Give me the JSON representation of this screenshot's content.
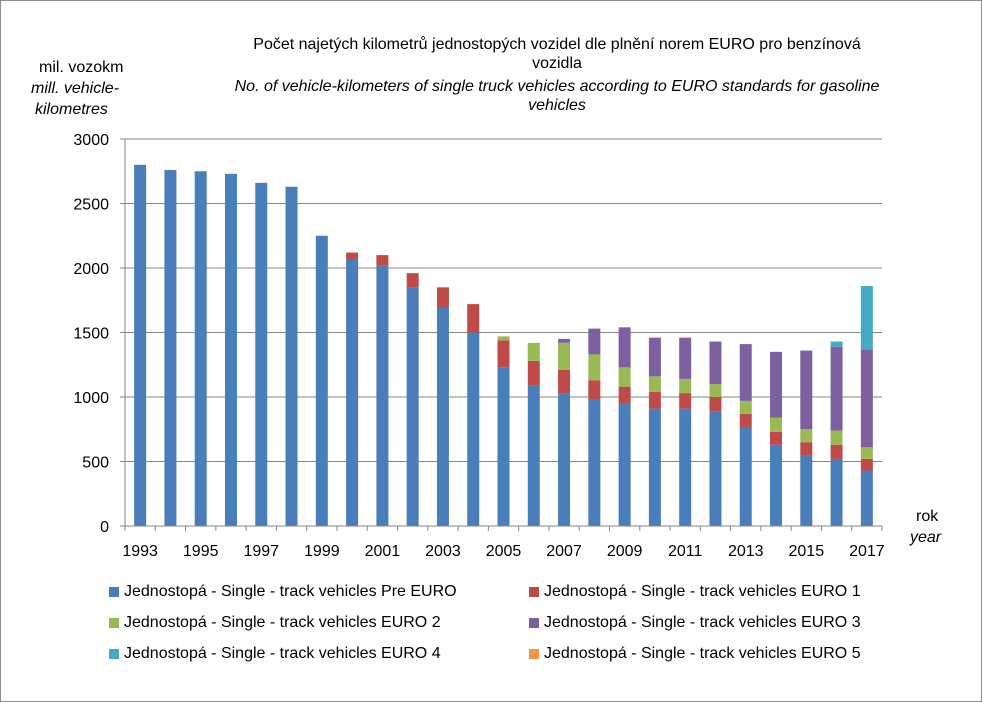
{
  "chart_data": {
    "type": "bar",
    "stacked": true,
    "title_cz": "Počet najetých kilometrů jednostopých vozidel dle plnění norem EURO pro benzínová vozidla",
    "title_cz_line1": "Počet najetých kilometrů jednostopých vozidel dle plnění norem EURO pro benzínová",
    "title_cz_line2": "vozidla",
    "title_en_line1": "No. of vehicle-kilometers of  single truck vehicles according to EURO standards for gasoline",
    "title_en_line2": "vehicles",
    "ylabel_cz": "mil. vozokm",
    "ylabel_en_line1": "mill. vehicle-",
    "ylabel_en_line2": "kilometres",
    "xlabel_cz": "rok",
    "xlabel_en": "year",
    "ylim": [
      0,
      3000
    ],
    "yticks": [
      0,
      500,
      1000,
      1500,
      2000,
      2500,
      3000
    ],
    "categories": [
      "1993",
      "1994",
      "1995",
      "1996",
      "1997",
      "1998",
      "1999",
      "2000",
      "2001",
      "2002",
      "2003",
      "2004",
      "2005",
      "2006",
      "2007",
      "2008",
      "2009",
      "2010",
      "2011",
      "2012",
      "2013",
      "2014",
      "2015",
      "2016",
      "2017"
    ],
    "xtick_labels": [
      "1993",
      "1995",
      "1997",
      "1999",
      "2001",
      "2003",
      "2005",
      "2007",
      "2009",
      "2011",
      "2013",
      "2015",
      "2017"
    ],
    "series": [
      {
        "name": "Jednostopá - Single - track vehicles Pre EURO",
        "color": "#4a7ebb",
        "values": [
          2800,
          2760,
          2750,
          2730,
          2660,
          2630,
          2250,
          2070,
          2020,
          1850,
          1690,
          1500,
          1230,
          1090,
          1030,
          980,
          950,
          910,
          910,
          890,
          760,
          630,
          550,
          520,
          430
        ]
      },
      {
        "name": "Jednostopá - Single - track vehicles EURO 1",
        "color": "#be4b48",
        "values": [
          0,
          0,
          0,
          0,
          0,
          0,
          0,
          50,
          80,
          110,
          160,
          220,
          210,
          190,
          180,
          150,
          130,
          130,
          120,
          110,
          110,
          100,
          100,
          110,
          90
        ]
      },
      {
        "name": "Jednostopá - Single - track vehicles EURO 2",
        "color": "#98b954",
        "values": [
          0,
          0,
          0,
          0,
          0,
          0,
          0,
          0,
          0,
          0,
          0,
          0,
          30,
          140,
          210,
          200,
          150,
          120,
          110,
          100,
          100,
          110,
          100,
          110,
          90
        ]
      },
      {
        "name": "Jednostopá - Single - track vehicles EURO 3",
        "color": "#7d60a0",
        "values": [
          0,
          0,
          0,
          0,
          0,
          0,
          0,
          0,
          0,
          0,
          0,
          0,
          0,
          0,
          30,
          200,
          310,
          300,
          320,
          330,
          440,
          510,
          610,
          650,
          760
        ]
      },
      {
        "name": "Jednostopá - Single - track vehicles EURO 4",
        "color": "#46aac5",
        "values": [
          0,
          0,
          0,
          0,
          0,
          0,
          0,
          0,
          0,
          0,
          0,
          0,
          0,
          0,
          0,
          0,
          0,
          0,
          0,
          0,
          0,
          0,
          0,
          40,
          490
        ]
      },
      {
        "name": "Jednostopá - Single - track vehicles EURO 5",
        "color": "#f79646",
        "values": [
          0,
          0,
          0,
          0,
          0,
          0,
          0,
          0,
          0,
          0,
          0,
          0,
          0,
          0,
          0,
          0,
          0,
          0,
          0,
          0,
          0,
          0,
          0,
          0,
          0
        ]
      }
    ],
    "legend_position": "bottom"
  }
}
